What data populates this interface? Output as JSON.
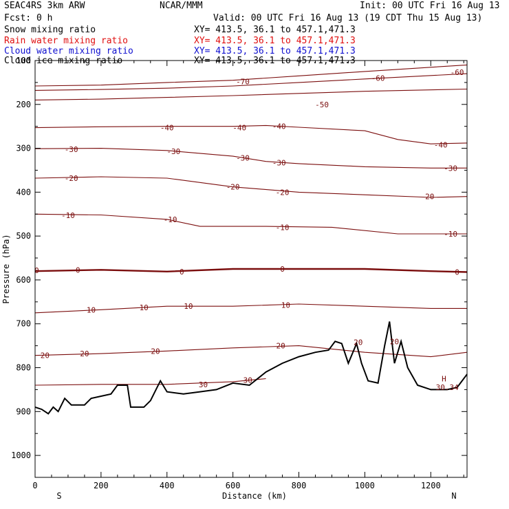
{
  "header": {
    "model": "SEAC4RS  3km ARW",
    "org": "NCAR/MMM",
    "init": "Init: 00 UTC Fri 16 Aug 13",
    "fcst": "Fcst:    0 h",
    "valid": "Valid: 00 UTC Fri 16 Aug 13 (19 CDT Thu 15 Aug 13)",
    "fields": [
      {
        "label": "Snow mixing ratio",
        "xy": "XY= 413.5, 36.1 to 457.1,471.3",
        "color": "#000000"
      },
      {
        "label": "Rain water mixing ratio",
        "xy": "XY= 413.5, 36.1 to 457.1,471.3",
        "color": "#e01010"
      },
      {
        "label": "Cloud water mixing ratio",
        "xy": "XY= 413.5, 36.1 to 457.1,471.3",
        "color": "#1010d0"
      },
      {
        "label": "Cloud ice mixing ratio",
        "xy": "XY= 413.5, 36.1 to 457.1,471.3",
        "color": "#000000"
      }
    ]
  },
  "chart_data": {
    "type": "line",
    "xlabel": "Distance (km)",
    "ylabel": "Pressure (hPa)",
    "xlim": [
      0,
      1310
    ],
    "ylim": [
      1050,
      100
    ],
    "xticks": [
      "0",
      "200",
      "400",
      "600",
      "800",
      "1000",
      "1200"
    ],
    "xtick_values": [
      0,
      200,
      400,
      600,
      800,
      1000,
      1200
    ],
    "yticks": [
      "100",
      "200",
      "300",
      "400",
      "500",
      "600",
      "700",
      "800",
      "900",
      "1000"
    ],
    "ytick_values": [
      100,
      200,
      300,
      400,
      500,
      600,
      700,
      800,
      900,
      1000
    ],
    "left_end_label": "S",
    "right_end_label": "N",
    "contour_color": "#7a0c0c",
    "terrain_color": "#000000",
    "isotherm_levels": [
      -70,
      -60,
      -50,
      -40,
      -30,
      -20,
      -10,
      0,
      10,
      20,
      30
    ],
    "isotherms": [
      {
        "level": -70,
        "points": [
          [
            0,
            158
          ],
          [
            200,
            156
          ],
          [
            400,
            150
          ],
          [
            600,
            145
          ],
          [
            800,
            135
          ],
          [
            1000,
            125
          ],
          [
            1310,
            110
          ]
        ]
      },
      {
        "level": -60,
        "points": [
          [
            0,
            168
          ],
          [
            200,
            166
          ],
          [
            400,
            163
          ],
          [
            600,
            158
          ],
          [
            800,
            150
          ],
          [
            1000,
            142
          ],
          [
            1310,
            130
          ]
        ]
      },
      {
        "level": -50,
        "points": [
          [
            0,
            190
          ],
          [
            200,
            188
          ],
          [
            400,
            184
          ],
          [
            600,
            180
          ],
          [
            800,
            175
          ],
          [
            1000,
            170
          ],
          [
            1310,
            165
          ]
        ]
      },
      {
        "level": -40,
        "points": [
          [
            0,
            253
          ],
          [
            200,
            251
          ],
          [
            400,
            250
          ],
          [
            600,
            250
          ],
          [
            700,
            248
          ],
          [
            800,
            252
          ],
          [
            1000,
            260
          ],
          [
            1100,
            280
          ],
          [
            1200,
            290
          ],
          [
            1310,
            288
          ]
        ]
      },
      {
        "level": -30,
        "points": [
          [
            0,
            301
          ],
          [
            200,
            300
          ],
          [
            400,
            305
          ],
          [
            600,
            318
          ],
          [
            700,
            330
          ],
          [
            800,
            335
          ],
          [
            1000,
            342
          ],
          [
            1200,
            345
          ],
          [
            1310,
            345
          ]
        ]
      },
      {
        "level": -20,
        "points": [
          [
            0,
            368
          ],
          [
            200,
            365
          ],
          [
            400,
            368
          ],
          [
            600,
            388
          ],
          [
            800,
            400
          ],
          [
            1000,
            406
          ],
          [
            1200,
            412
          ],
          [
            1310,
            410
          ]
        ]
      },
      {
        "level": -10,
        "points": [
          [
            0,
            450
          ],
          [
            200,
            452
          ],
          [
            400,
            462
          ],
          [
            500,
            478
          ],
          [
            700,
            478
          ],
          [
            900,
            480
          ],
          [
            1100,
            495
          ],
          [
            1310,
            495
          ]
        ]
      },
      {
        "level": 0,
        "points": [
          [
            0,
            580
          ],
          [
            200,
            577
          ],
          [
            400,
            581
          ],
          [
            600,
            575
          ],
          [
            800,
            575
          ],
          [
            1000,
            575
          ],
          [
            1200,
            580
          ],
          [
            1310,
            582
          ]
        ]
      },
      {
        "level": 10,
        "points": [
          [
            0,
            675
          ],
          [
            200,
            668
          ],
          [
            400,
            660
          ],
          [
            600,
            660
          ],
          [
            800,
            655
          ],
          [
            1000,
            660
          ],
          [
            1200,
            665
          ],
          [
            1310,
            665
          ]
        ]
      },
      {
        "level": 20,
        "points": [
          [
            0,
            772
          ],
          [
            200,
            768
          ],
          [
            400,
            762
          ],
          [
            600,
            755
          ],
          [
            800,
            750
          ],
          [
            1000,
            765
          ],
          [
            1200,
            775
          ],
          [
            1310,
            765
          ]
        ]
      },
      {
        "level": 30,
        "points": [
          [
            0,
            840
          ],
          [
            200,
            838
          ],
          [
            400,
            838
          ],
          [
            600,
            832
          ],
          [
            700,
            825
          ]
        ]
      }
    ],
    "terrain": {
      "points": [
        [
          0,
          890
        ],
        [
          20,
          895
        ],
        [
          40,
          905
        ],
        [
          55,
          890
        ],
        [
          70,
          900
        ],
        [
          90,
          870
        ],
        [
          110,
          885
        ],
        [
          150,
          885
        ],
        [
          170,
          870
        ],
        [
          200,
          865
        ],
        [
          230,
          860
        ],
        [
          250,
          840
        ],
        [
          280,
          840
        ],
        [
          290,
          890
        ],
        [
          330,
          890
        ],
        [
          350,
          875
        ],
        [
          370,
          845
        ],
        [
          380,
          830
        ],
        [
          400,
          855
        ],
        [
          450,
          860
        ],
        [
          500,
          855
        ],
        [
          550,
          850
        ],
        [
          600,
          835
        ],
        [
          650,
          840
        ],
        [
          700,
          810
        ],
        [
          750,
          790
        ],
        [
          800,
          775
        ],
        [
          850,
          765
        ],
        [
          890,
          760
        ],
        [
          910,
          740
        ],
        [
          930,
          745
        ],
        [
          950,
          790
        ],
        [
          975,
          745
        ],
        [
          990,
          790
        ],
        [
          1010,
          830
        ],
        [
          1040,
          835
        ],
        [
          1060,
          750
        ],
        [
          1075,
          695
        ],
        [
          1090,
          790
        ],
        [
          1110,
          740
        ],
        [
          1130,
          800
        ],
        [
          1160,
          840
        ],
        [
          1200,
          850
        ],
        [
          1250,
          850
        ],
        [
          1280,
          845
        ],
        [
          1310,
          815
        ]
      ]
    },
    "annotations": [
      {
        "text": "-70",
        "x": 630,
        "y": 148
      },
      {
        "text": "-60",
        "x": 1040,
        "y": 140
      },
      {
        "text": "-60",
        "x": 1280,
        "y": 127
      },
      {
        "text": "-50",
        "x": 870,
        "y": 200
      },
      {
        "text": "-40",
        "x": 400,
        "y": 253
      },
      {
        "text": "-40",
        "x": 620,
        "y": 253
      },
      {
        "text": "-40",
        "x": 740,
        "y": 250
      },
      {
        "text": "-40",
        "x": 1230,
        "y": 292
      },
      {
        "text": "-30",
        "x": 110,
        "y": 302
      },
      {
        "text": "-30",
        "x": 420,
        "y": 307
      },
      {
        "text": "-30",
        "x": 630,
        "y": 322
      },
      {
        "text": "-30",
        "x": 740,
        "y": 333
      },
      {
        "text": "-30",
        "x": 1260,
        "y": 345
      },
      {
        "text": "-20",
        "x": 110,
        "y": 368
      },
      {
        "text": "-20",
        "x": 600,
        "y": 388
      },
      {
        "text": "-20",
        "x": 750,
        "y": 400
      },
      {
        "text": "-20",
        "x": 1190,
        "y": 410
      },
      {
        "text": "-10",
        "x": 100,
        "y": 453
      },
      {
        "text": "-10",
        "x": 410,
        "y": 462
      },
      {
        "text": "-10",
        "x": 750,
        "y": 480
      },
      {
        "text": "-10",
        "x": 1260,
        "y": 495
      },
      {
        "text": "0",
        "x": 5,
        "y": 578
      },
      {
        "text": "0",
        "x": 130,
        "y": 577
      },
      {
        "text": "0",
        "x": 445,
        "y": 581
      },
      {
        "text": "0",
        "x": 750,
        "y": 575
      },
      {
        "text": "0",
        "x": 1280,
        "y": 582
      },
      {
        "text": "10",
        "x": 170,
        "y": 668
      },
      {
        "text": "10",
        "x": 330,
        "y": 663
      },
      {
        "text": "10",
        "x": 465,
        "y": 660
      },
      {
        "text": "10",
        "x": 760,
        "y": 657
      },
      {
        "text": "20",
        "x": 30,
        "y": 772
      },
      {
        "text": "20",
        "x": 150,
        "y": 768
      },
      {
        "text": "20",
        "x": 365,
        "y": 762
      },
      {
        "text": "20",
        "x": 745,
        "y": 750
      },
      {
        "text": "20",
        "x": 980,
        "y": 742
      },
      {
        "text": "20",
        "x": 1090,
        "y": 740
      },
      {
        "text": "30",
        "x": 510,
        "y": 838
      },
      {
        "text": "30",
        "x": 645,
        "y": 828
      },
      {
        "text": "H",
        "x": 1240,
        "y": 825
      },
      {
        "text": "30.34",
        "x": 1250,
        "y": 845
      }
    ]
  }
}
